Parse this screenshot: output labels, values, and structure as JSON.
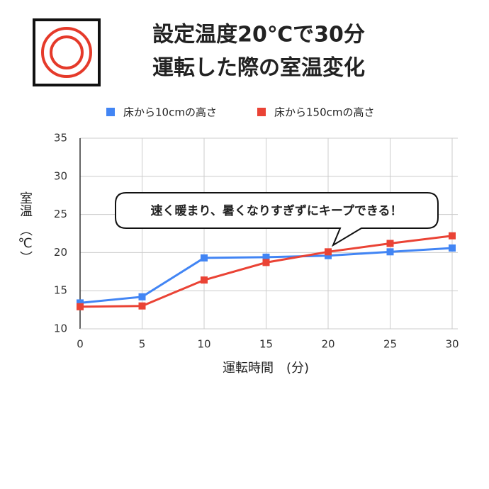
{
  "chart_data": {
    "type": "line",
    "title": [
      "設定温度20℃で30分",
      "運転した際の室温変化"
    ],
    "x_label": "運転時間　(分)",
    "y_label": "室温　（℃）",
    "annotation": "速く暖まり、暑くなりすぎずにキープできる！",
    "x": [
      0,
      5,
      10,
      15,
      20,
      25,
      30
    ],
    "series": [
      {
        "name": "床から10cmの高さ",
        "color": "#4285f4",
        "values": [
          13.4,
          14.2,
          19.3,
          19.4,
          19.6,
          20.1,
          20.6
        ]
      },
      {
        "name": "床から150cmの高さ",
        "color": "#ea4335",
        "values": [
          12.9,
          13.0,
          16.4,
          18.7,
          20.1,
          21.2,
          22.2
        ]
      }
    ],
    "xlim": [
      0,
      30
    ],
    "xticks": [
      0,
      5,
      10,
      15,
      20,
      25,
      30
    ],
    "ylim": [
      10,
      35
    ],
    "yticks": [
      10,
      15,
      20,
      25,
      30,
      35
    ],
    "grid": true,
    "legend": "top"
  }
}
